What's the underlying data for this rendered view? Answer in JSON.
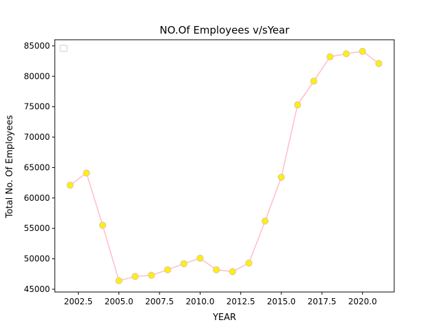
{
  "chart_data": {
    "type": "line",
    "title": "NO.Of Employees v/sYear",
    "xlabel": "YEAR",
    "ylabel": "Total No. Of Employees",
    "xlim": [
      2001.05,
      2021.95
    ],
    "ylim": [
      44550,
      86000
    ],
    "xticks": [
      2002.5,
      2005.0,
      2007.5,
      2010.0,
      2012.5,
      2015.0,
      2017.5,
      2020.0
    ],
    "xtick_labels": [
      "2002.5",
      "2005.0",
      "2007.5",
      "2010.0",
      "2012.5",
      "2015.0",
      "2017.5",
      "2020.0"
    ],
    "yticks": [
      45000,
      50000,
      55000,
      60000,
      65000,
      70000,
      75000,
      80000,
      85000
    ],
    "ytick_labels": [
      "45000",
      "50000",
      "55000",
      "60000",
      "65000",
      "70000",
      "75000",
      "80000",
      "85000"
    ],
    "legend": {
      "placement": "upper-left",
      "entries": [
        ""
      ]
    },
    "grid": false,
    "series": [
      {
        "line_color": "#ffc0cb",
        "marker_color": "#ffee11",
        "marker_edge_color": "#d8c8a0",
        "x": [
          2002,
          2003,
          2004,
          2005,
          2006,
          2007,
          2008,
          2009,
          2010,
          2011,
          2012,
          2013,
          2014,
          2015,
          2016,
          2017,
          2018,
          2019,
          2020,
          2021
        ],
        "y": [
          62100,
          64100,
          55500,
          46400,
          47100,
          47300,
          48200,
          49200,
          50100,
          48200,
          47900,
          49300,
          56200,
          63400,
          75300,
          79200,
          83200,
          83700,
          84100,
          82100
        ]
      }
    ]
  }
}
